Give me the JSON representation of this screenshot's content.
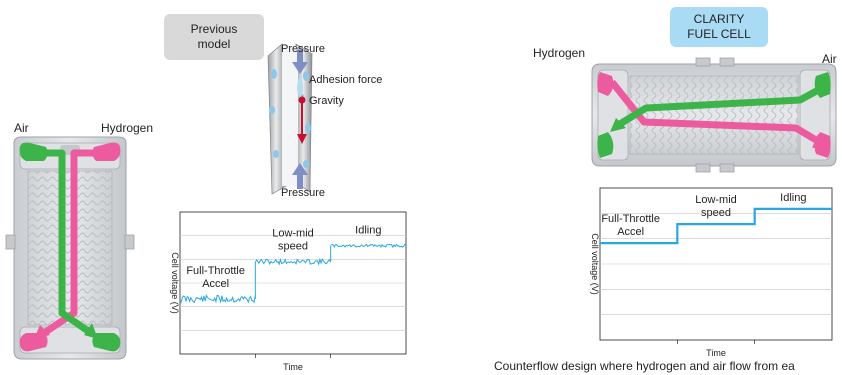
{
  "left": {
    "model_box": {
      "line1": "Previous",
      "line2": "model"
    },
    "stack_labels": {
      "air": "Air",
      "hydrogen": "Hydrogen"
    },
    "forces": {
      "pressure_top": "Pressure",
      "adhesion": "Adhesion force",
      "gravity": "Gravity",
      "pressure_bottom": "Pressure"
    }
  },
  "right": {
    "model_box": {
      "line1": "CLARITY",
      "line2": "FUEL CELL"
    },
    "stack_labels": {
      "hydrogen": "Hydrogen",
      "air": "Air"
    },
    "caption": "Counterflow design where hydrogen and air flow from ea"
  },
  "colors": {
    "air_flow": "#3cb449",
    "hydrogen_flow": "#ec5b9e",
    "voltage_trace": "#29a8e0",
    "gravity_arrow": "#c8102e",
    "pressure_arrow": "#7f8fc6",
    "gray_box": "#d9d9d9",
    "blue_box": "#a9dcf4"
  },
  "chart_data": [
    {
      "type": "line",
      "name": "previous-model-voltage",
      "xlabel": "Time",
      "ylabel": "Cell voltage (V)",
      "segments": [
        {
          "label_lines": [
            "Full-Throttle",
            "Accel"
          ],
          "t": [
            0,
            1
          ],
          "v": 1.55,
          "noise": 0.22
        },
        {
          "label_lines": [
            "Low-mid",
            "speed"
          ],
          "t": [
            1,
            2
          ],
          "v": 2.6,
          "noise": 0.14
        },
        {
          "label_lines": [
            "Idling"
          ],
          "t": [
            2,
            3
          ],
          "v": 3.05,
          "noise": 0.08
        }
      ],
      "ylim": [
        0,
        4
      ],
      "xlim": [
        0,
        3
      ],
      "grid": true
    },
    {
      "type": "line",
      "name": "clarity-voltage",
      "xlabel": "Time",
      "ylabel": "Cell voltage (V)",
      "segments": [
        {
          "label_lines": [
            "Full-Throttle",
            "Accel"
          ],
          "t": [
            0,
            1
          ],
          "v": 2.55
        },
        {
          "label_lines": [
            "Low-mid",
            "speed"
          ],
          "t": [
            1,
            2
          ],
          "v": 3.05
        },
        {
          "label_lines": [
            "Idling"
          ],
          "t": [
            2,
            3
          ],
          "v": 3.45
        }
      ],
      "ylim": [
        0,
        4
      ],
      "xlim": [
        0,
        3
      ],
      "grid": true
    }
  ]
}
